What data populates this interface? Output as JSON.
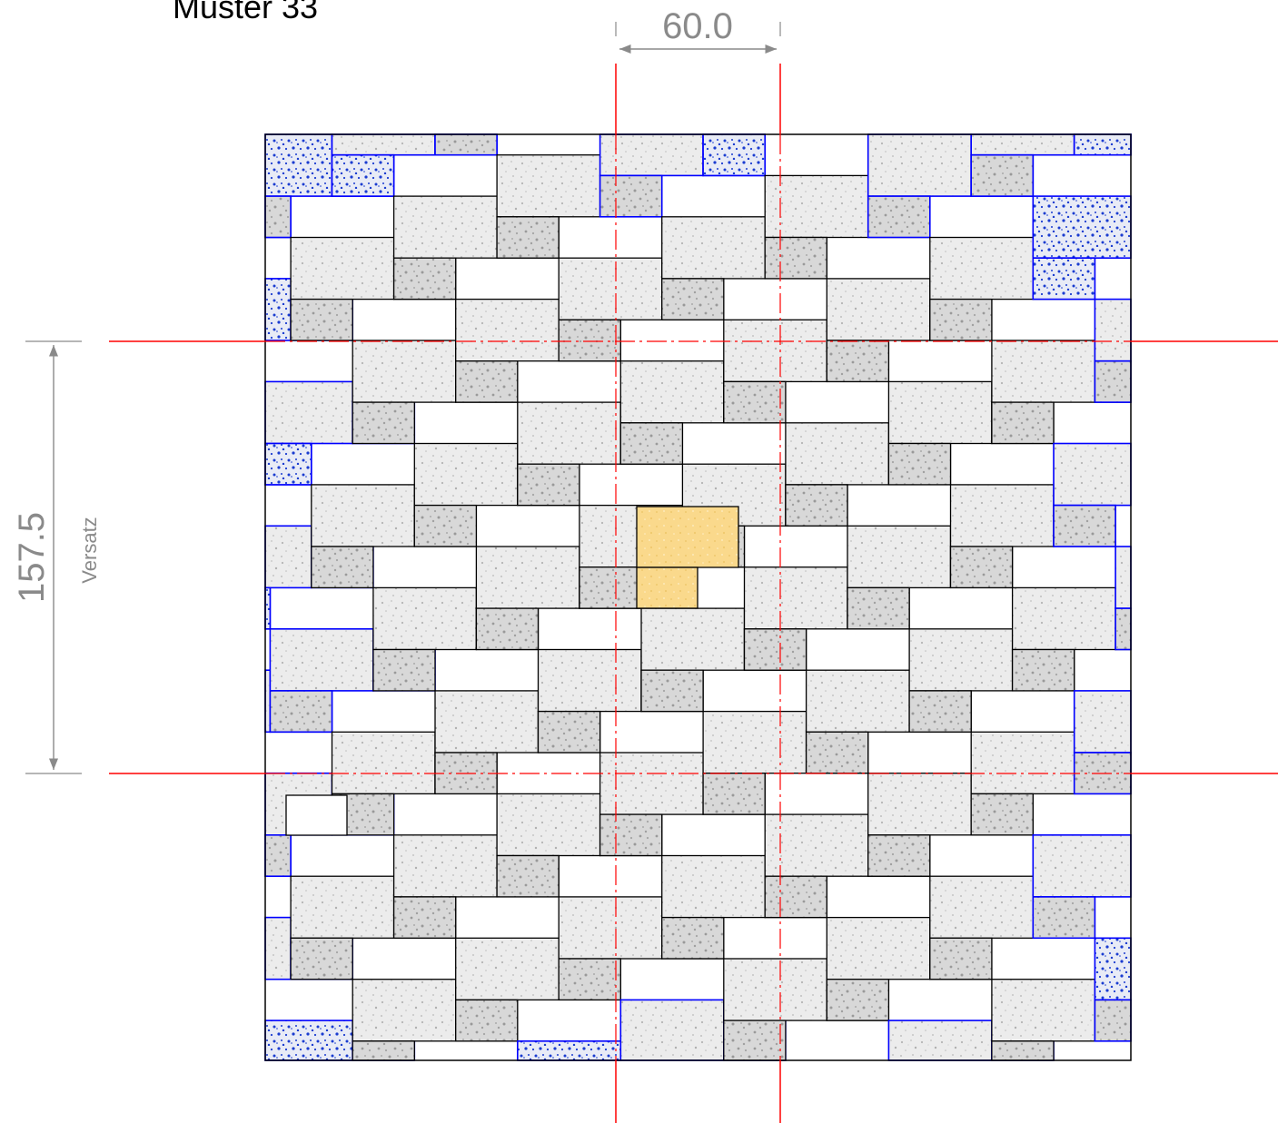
{
  "title": "Muster 33",
  "dimensions": {
    "horizontal": {
      "value": "60.0"
    },
    "vertical": {
      "value": "157.5",
      "label": "Versatz"
    }
  },
  "colors": {
    "outline": "#000000",
    "tile_fill": "#eeeeee",
    "tile_fill_dark": "#d0d0d0",
    "cut_tile_outline": "#0000ff",
    "cut_tile_pattern": "#1a3cd0",
    "highlight_tile": "#f9d98a",
    "axis_line": "#ff0000",
    "dimension": "#8a8a8a"
  },
  "legend": {
    "tiles": [
      "grey stone tile",
      "cut edge tile (blue)",
      "highlighted repeat unit (yellow)"
    ]
  }
}
